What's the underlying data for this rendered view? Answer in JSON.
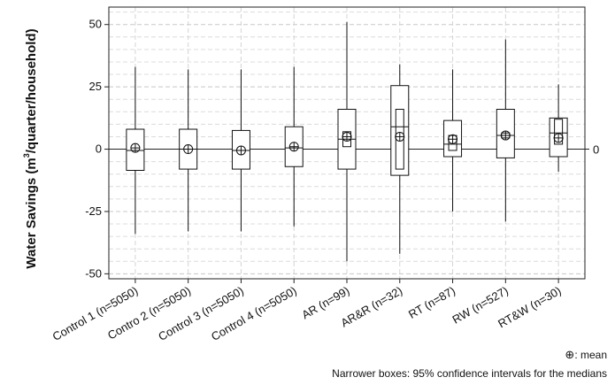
{
  "chart_data": {
    "type": "boxplot",
    "ylabel_main": "Water Savings (m",
    "ylabel_sup": "3",
    "ylabel_rest": "/quarter/household)",
    "ylim": [
      -52,
      57
    ],
    "yticks": [
      -50,
      -25,
      0,
      25,
      50
    ],
    "ytick_labels": [
      "-50",
      "-25",
      "0",
      "25",
      "50"
    ],
    "grid": true,
    "reference_line": 0,
    "reference_label": "0",
    "categories": [
      "Control 1 (n=5050)",
      "Contro 2 (n=5050)",
      "Control 3 (n=5050)",
      "Control 4 (n=5050)",
      "AR (n=99)",
      "AR&R (n=32)",
      "RT (n=87)",
      "RW (n=527)",
      "RT&W (n=30)"
    ],
    "series": [
      {
        "min": -34,
        "q1": -8.5,
        "median": -0.5,
        "q3": 8,
        "max": 33,
        "mean": 0.5,
        "ci": [
          -0.5,
          -0.5
        ]
      },
      {
        "min": -33,
        "q1": -8,
        "median": 0,
        "q3": 8,
        "max": 32,
        "mean": 0,
        "ci": [
          0,
          0
        ]
      },
      {
        "min": -33,
        "q1": -8,
        "median": -0.5,
        "q3": 7.5,
        "max": 32,
        "mean": -0.5,
        "ci": [
          -0.5,
          -0.5
        ]
      },
      {
        "min": -31,
        "q1": -7,
        "median": 0.5,
        "q3": 9,
        "max": 33,
        "mean": 1,
        "ci": [
          0.5,
          0.5
        ]
      },
      {
        "min": -45,
        "q1": -8,
        "median": 4,
        "q3": 16,
        "max": 51,
        "mean": 5,
        "ci": [
          1,
          7
        ]
      },
      {
        "min": -42,
        "q1": -10.5,
        "median": 9,
        "q3": 25.5,
        "max": 34,
        "mean": 5,
        "ci": [
          -8,
          16
        ]
      },
      {
        "min": -25,
        "q1": -3,
        "median": 2,
        "q3": 11.5,
        "max": 32,
        "mean": 4,
        "ci": [
          -0.5,
          5.5
        ]
      },
      {
        "min": -29,
        "q1": -3.5,
        "median": 5.5,
        "q3": 16,
        "max": 44,
        "mean": 5.5,
        "ci": [
          4.5,
          6.5
        ]
      },
      {
        "min": -9,
        "q1": -3,
        "median": 6.5,
        "q3": 12.5,
        "max": 26,
        "mean": 4.5,
        "ci": [
          2,
          12
        ]
      }
    ],
    "legend_mean_symbol": "⊕",
    "legend_mean_label": ": mean",
    "footnote": "Narrower boxes: 95% confidence intervals for the medians"
  }
}
